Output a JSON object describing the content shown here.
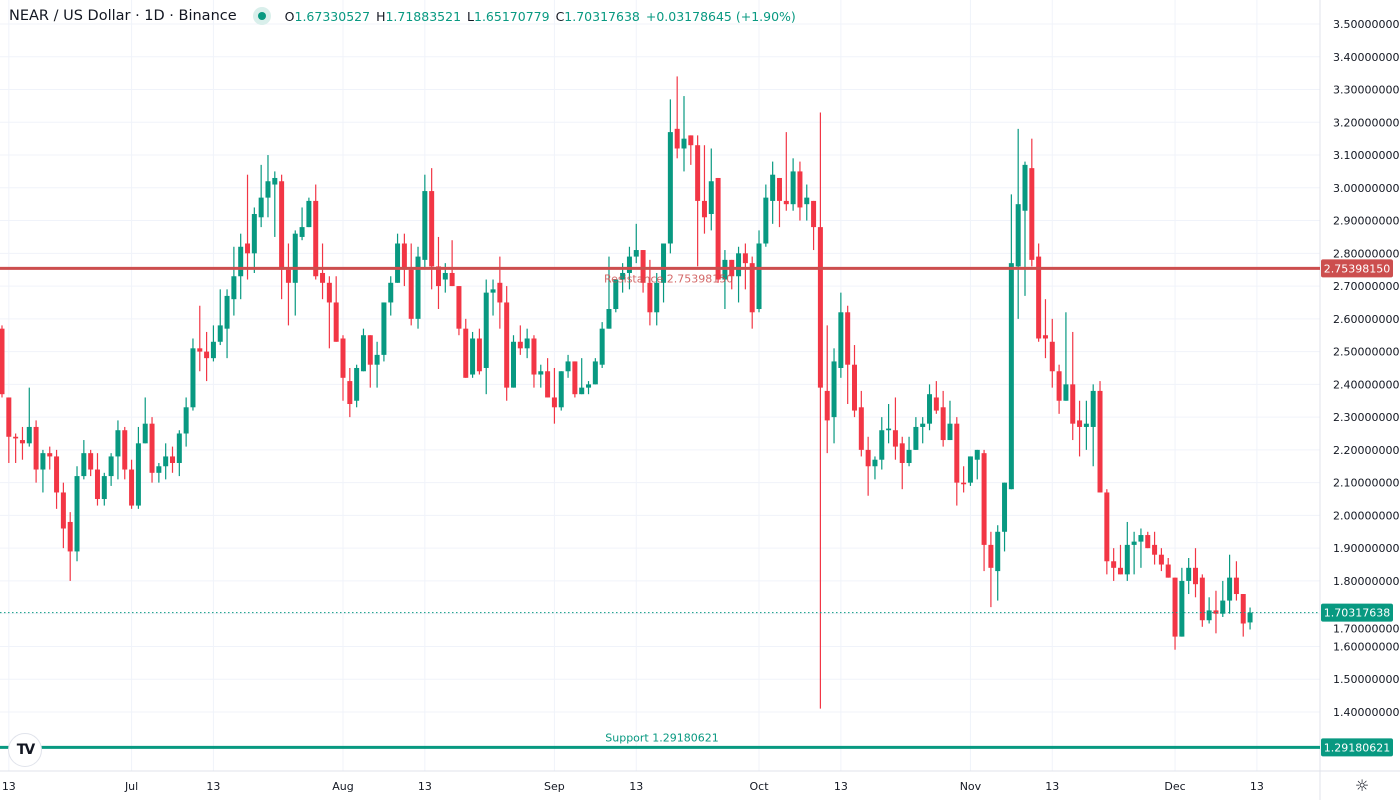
{
  "header": {
    "title": "NEAR / US Dollar · 1D · Binance",
    "o_label": "O",
    "o_value": "1.67330527",
    "h_label": "H",
    "h_value": "1.71883521",
    "l_label": "L",
    "l_value": "1.65170779",
    "c_label": "C",
    "c_value": "1.70317638",
    "change": "+0.03178645 (+1.90%)"
  },
  "colors": {
    "up": "#089981",
    "down": "#f23645",
    "resistance": "#cc4e4e",
    "support": "#089981",
    "grid": "#f0f3fa"
  },
  "icons": {
    "settings": "gear-icon",
    "logo": "tradingview-logo"
  },
  "logo_text": "TV",
  "chart_data": {
    "type": "candlestick",
    "title": "NEAR / US Dollar · 1D · Binance",
    "ylim": [
      1.4,
      3.5
    ],
    "yticks": [
      "3.50000000",
      "3.40000000",
      "3.30000000",
      "3.20000000",
      "3.10000000",
      "3.00000000",
      "2.90000000",
      "2.80000000",
      "2.70000000",
      "2.60000000",
      "2.50000000",
      "2.40000000",
      "2.30000000",
      "2.20000000",
      "2.10000000",
      "2.00000000",
      "1.90000000",
      "1.80000000",
      "1.70000000",
      "1.60000000",
      "1.50000000",
      "1.40000000"
    ],
    "xticks": [
      {
        "label": "13",
        "index": 1
      },
      {
        "label": "Jul",
        "index": 19
      },
      {
        "label": "13",
        "index": 31
      },
      {
        "label": "Aug",
        "index": 50
      },
      {
        "label": "13",
        "index": 62
      },
      {
        "label": "Sep",
        "index": 81
      },
      {
        "label": "13",
        "index": 93
      },
      {
        "label": "Oct",
        "index": 111
      },
      {
        "label": "13",
        "index": 123
      },
      {
        "label": "Nov",
        "index": 142
      },
      {
        "label": "13",
        "index": 154
      },
      {
        "label": "Dec",
        "index": 172
      },
      {
        "label": "13",
        "index": 184
      }
    ],
    "resistance": {
      "label": "Resistance 2.75398150",
      "value": 2.7539815,
      "axis_label": "2.75398150"
    },
    "support": {
      "label": "Support 1.29180621",
      "value": 1.29180621,
      "axis_label": "1.29180621"
    },
    "last_price": {
      "value": 1.70317638,
      "axis_label": "1.70317638"
    },
    "ohlc_fields": [
      "open",
      "high",
      "low",
      "close"
    ],
    "candles": [
      [
        2.57,
        2.58,
        2.36,
        2.37
      ],
      [
        2.36,
        2.36,
        2.16,
        2.24
      ],
      [
        2.24,
        2.25,
        2.16,
        2.235
      ],
      [
        2.23,
        2.27,
        2.17,
        2.22
      ],
      [
        2.22,
        2.39,
        2.21,
        2.27
      ],
      [
        2.27,
        2.29,
        2.1,
        2.14
      ],
      [
        2.14,
        2.2,
        2.07,
        2.19
      ],
      [
        2.19,
        2.21,
        2.14,
        2.18
      ],
      [
        2.18,
        2.2,
        2.02,
        2.07
      ],
      [
        2.07,
        2.1,
        1.9,
        1.96
      ],
      [
        1.98,
        2.01,
        1.8,
        1.89
      ],
      [
        1.89,
        2.15,
        1.86,
        2.12
      ],
      [
        2.12,
        2.23,
        2.11,
        2.19
      ],
      [
        2.19,
        2.2,
        2.12,
        2.14
      ],
      [
        2.14,
        2.19,
        2.03,
        2.05
      ],
      [
        2.05,
        2.13,
        2.03,
        2.12
      ],
      [
        2.12,
        2.19,
        2.09,
        2.18
      ],
      [
        2.18,
        2.29,
        2.11,
        2.26
      ],
      [
        2.26,
        2.27,
        2.11,
        2.14
      ],
      [
        2.14,
        2.17,
        2.02,
        2.03
      ],
      [
        2.03,
        2.27,
        2.02,
        2.22
      ],
      [
        2.22,
        2.36,
        2.22,
        2.28
      ],
      [
        2.28,
        2.3,
        2.1,
        2.13
      ],
      [
        2.13,
        2.16,
        2.1,
        2.15
      ],
      [
        2.15,
        2.22,
        2.11,
        2.18
      ],
      [
        2.18,
        2.21,
        2.13,
        2.16
      ],
      [
        2.16,
        2.26,
        2.12,
        2.25
      ],
      [
        2.25,
        2.36,
        2.21,
        2.33
      ],
      [
        2.33,
        2.54,
        2.32,
        2.51
      ],
      [
        2.51,
        2.64,
        2.44,
        2.5
      ],
      [
        2.5,
        2.56,
        2.41,
        2.48
      ],
      [
        2.48,
        2.58,
        2.47,
        2.53
      ],
      [
        2.53,
        2.69,
        2.52,
        2.58
      ],
      [
        2.57,
        2.69,
        2.48,
        2.67
      ],
      [
        2.66,
        2.82,
        2.61,
        2.73
      ],
      [
        2.73,
        2.86,
        2.66,
        2.82
      ],
      [
        2.83,
        3.04,
        2.72,
        2.8
      ],
      [
        2.8,
        2.94,
        2.74,
        2.92
      ],
      [
        2.91,
        3.07,
        2.88,
        2.97
      ],
      [
        2.97,
        3.1,
        2.91,
        3.02
      ],
      [
        3.01,
        3.05,
        2.85,
        3.03
      ],
      [
        3.02,
        3.04,
        2.66,
        2.75
      ],
      [
        2.75,
        2.83,
        2.58,
        2.71
      ],
      [
        2.71,
        2.87,
        2.61,
        2.86
      ],
      [
        2.85,
        2.94,
        2.84,
        2.88
      ],
      [
        2.88,
        2.97,
        2.88,
        2.96
      ],
      [
        2.96,
        3.01,
        2.72,
        2.73
      ],
      [
        2.74,
        2.83,
        2.66,
        2.71
      ],
      [
        2.71,
        2.73,
        2.51,
        2.65
      ],
      [
        2.65,
        2.73,
        2.53,
        2.53
      ],
      [
        2.54,
        2.55,
        2.35,
        2.42
      ],
      [
        2.41,
        2.45,
        2.3,
        2.34
      ],
      [
        2.35,
        2.46,
        2.33,
        2.45
      ],
      [
        2.44,
        2.57,
        2.44,
        2.55
      ],
      [
        2.55,
        2.55,
        2.39,
        2.46
      ],
      [
        2.46,
        2.53,
        2.39,
        2.49
      ],
      [
        2.49,
        2.65,
        2.47,
        2.65
      ],
      [
        2.65,
        2.73,
        2.61,
        2.71
      ],
      [
        2.71,
        2.86,
        2.71,
        2.83
      ],
      [
        2.83,
        2.86,
        2.7,
        2.75
      ],
      [
        2.75,
        2.83,
        2.58,
        2.6
      ],
      [
        2.6,
        2.82,
        2.57,
        2.79
      ],
      [
        2.78,
        3.04,
        2.75,
        2.99
      ],
      [
        2.99,
        3.06,
        2.69,
        2.76
      ],
      [
        2.76,
        2.85,
        2.63,
        2.7
      ],
      [
        2.72,
        2.77,
        2.68,
        2.74
      ],
      [
        2.74,
        2.84,
        2.7,
        2.7
      ],
      [
        2.7,
        2.7,
        2.55,
        2.57
      ],
      [
        2.57,
        2.6,
        2.42,
        2.42
      ],
      [
        2.43,
        2.56,
        2.42,
        2.54
      ],
      [
        2.54,
        2.57,
        2.43,
        2.44
      ],
      [
        2.45,
        2.72,
        2.37,
        2.68
      ],
      [
        2.68,
        2.72,
        2.61,
        2.69
      ],
      [
        2.71,
        2.79,
        2.57,
        2.65
      ],
      [
        2.65,
        2.7,
        2.35,
        2.39
      ],
      [
        2.39,
        2.55,
        2.39,
        2.53
      ],
      [
        2.53,
        2.58,
        2.49,
        2.51
      ],
      [
        2.51,
        2.57,
        2.48,
        2.54
      ],
      [
        2.54,
        2.55,
        2.39,
        2.43
      ],
      [
        2.43,
        2.46,
        2.39,
        2.44
      ],
      [
        2.44,
        2.48,
        2.36,
        2.36
      ],
      [
        2.36,
        2.45,
        2.28,
        2.33
      ],
      [
        2.33,
        2.44,
        2.32,
        2.44
      ],
      [
        2.44,
        2.49,
        2.42,
        2.47
      ],
      [
        2.47,
        2.47,
        2.36,
        2.37
      ],
      [
        2.37,
        2.48,
        2.37,
        2.39
      ],
      [
        2.39,
        2.41,
        2.37,
        2.4
      ],
      [
        2.4,
        2.48,
        2.4,
        2.47
      ],
      [
        2.46,
        2.59,
        2.45,
        2.57
      ],
      [
        2.57,
        2.79,
        2.57,
        2.63
      ],
      [
        2.63,
        2.72,
        2.62,
        2.72
      ],
      [
        2.72,
        2.77,
        2.68,
        2.74
      ],
      [
        2.74,
        2.82,
        2.69,
        2.79
      ],
      [
        2.79,
        2.89,
        2.77,
        2.81
      ],
      [
        2.81,
        2.81,
        2.68,
        2.71
      ],
      [
        2.71,
        2.78,
        2.58,
        2.62
      ],
      [
        2.62,
        2.74,
        2.58,
        2.71
      ],
      [
        2.71,
        2.83,
        2.65,
        2.83
      ],
      [
        2.83,
        3.27,
        2.8,
        3.17
      ],
      [
        3.18,
        3.34,
        3.09,
        3.12
      ],
      [
        3.12,
        3.28,
        3.05,
        3.15
      ],
      [
        3.16,
        3.16,
        3.07,
        3.13
      ],
      [
        3.13,
        3.16,
        2.76,
        2.96
      ],
      [
        2.96,
        3.13,
        2.86,
        2.91
      ],
      [
        2.92,
        3.12,
        2.87,
        3.02
      ],
      [
        3.03,
        3.03,
        2.71,
        2.72
      ],
      [
        2.72,
        2.81,
        2.63,
        2.78
      ],
      [
        2.78,
        2.78,
        2.69,
        2.73
      ],
      [
        2.73,
        2.82,
        2.65,
        2.8
      ],
      [
        2.8,
        2.83,
        2.69,
        2.77
      ],
      [
        2.77,
        2.79,
        2.57,
        2.62
      ],
      [
        2.63,
        2.87,
        2.62,
        2.83
      ],
      [
        2.83,
        3.01,
        2.82,
        2.97
      ],
      [
        2.96,
        3.08,
        2.89,
        3.04
      ],
      [
        3.03,
        3.03,
        2.88,
        2.96
      ],
      [
        2.96,
        3.17,
        2.93,
        2.95
      ],
      [
        2.95,
        3.09,
        2.93,
        3.05
      ],
      [
        3.05,
        3.08,
        2.9,
        2.94
      ],
      [
        2.95,
        3.01,
        2.9,
        2.97
      ],
      [
        2.96,
        2.96,
        2.81,
        2.88
      ],
      [
        2.88,
        3.23,
        1.41,
        2.39
      ],
      [
        2.38,
        2.58,
        2.19,
        2.29
      ],
      [
        2.3,
        2.51,
        2.22,
        2.47
      ],
      [
        2.45,
        2.68,
        2.42,
        2.62
      ],
      [
        2.62,
        2.64,
        2.34,
        2.46
      ],
      [
        2.46,
        2.52,
        2.3,
        2.32
      ],
      [
        2.33,
        2.38,
        2.18,
        2.2
      ],
      [
        2.2,
        2.24,
        2.06,
        2.15
      ],
      [
        2.15,
        2.18,
        2.11,
        2.17
      ],
      [
        2.17,
        2.3,
        2.14,
        2.26
      ],
      [
        2.26,
        2.34,
        2.22,
        2.265
      ],
      [
        2.26,
        2.36,
        2.17,
        2.21
      ],
      [
        2.22,
        2.24,
        2.08,
        2.16
      ],
      [
        2.16,
        2.24,
        2.15,
        2.2
      ],
      [
        2.2,
        2.3,
        2.2,
        2.27
      ],
      [
        2.27,
        2.3,
        2.22,
        2.28
      ],
      [
        2.28,
        2.4,
        2.26,
        2.37
      ],
      [
        2.36,
        2.41,
        2.31,
        2.32
      ],
      [
        2.33,
        2.38,
        2.21,
        2.23
      ],
      [
        2.23,
        2.35,
        2.23,
        2.28
      ],
      [
        2.28,
        2.3,
        2.03,
        2.1
      ],
      [
        2.1,
        2.15,
        2.07,
        2.095
      ],
      [
        2.1,
        2.18,
        2.09,
        2.18
      ],
      [
        2.17,
        2.2,
        2.11,
        2.2
      ],
      [
        2.19,
        2.2,
        1.83,
        1.91
      ],
      [
        1.91,
        1.95,
        1.72,
        1.84
      ],
      [
        1.83,
        1.97,
        1.74,
        1.95
      ],
      [
        1.95,
        2.1,
        1.89,
        2.1
      ],
      [
        2.08,
        2.98,
        2.08,
        2.77
      ],
      [
        2.76,
        3.18,
        2.6,
        2.95
      ],
      [
        2.93,
        3.08,
        2.67,
        3.07
      ],
      [
        3.06,
        3.15,
        2.76,
        2.78
      ],
      [
        2.79,
        2.83,
        2.53,
        2.54
      ],
      [
        2.55,
        2.66,
        2.48,
        2.54
      ],
      [
        2.53,
        2.6,
        2.39,
        2.44
      ],
      [
        2.44,
        2.46,
        2.31,
        2.35
      ],
      [
        2.35,
        2.62,
        2.35,
        2.4
      ],
      [
        2.4,
        2.56,
        2.23,
        2.28
      ],
      [
        2.29,
        2.35,
        2.18,
        2.27
      ],
      [
        2.27,
        2.35,
        2.2,
        2.28
      ],
      [
        2.27,
        2.4,
        2.15,
        2.38
      ],
      [
        2.38,
        2.41,
        2.07,
        2.07
      ],
      [
        2.07,
        2.08,
        1.82,
        1.86
      ],
      [
        1.86,
        1.9,
        1.8,
        1.84
      ],
      [
        1.84,
        1.91,
        1.82,
        1.82
      ],
      [
        1.82,
        1.98,
        1.8,
        1.91
      ],
      [
        1.91,
        1.95,
        1.82,
        1.92
      ],
      [
        1.92,
        1.96,
        1.84,
        1.94
      ],
      [
        1.94,
        1.95,
        1.9,
        1.9
      ],
      [
        1.91,
        1.95,
        1.85,
        1.88
      ],
      [
        1.88,
        1.9,
        1.83,
        1.85
      ],
      [
        1.85,
        1.87,
        1.81,
        1.81
      ],
      [
        1.81,
        1.81,
        1.59,
        1.63
      ],
      [
        1.63,
        1.84,
        1.63,
        1.8
      ],
      [
        1.8,
        1.87,
        1.76,
        1.84
      ],
      [
        1.84,
        1.9,
        1.75,
        1.79
      ],
      [
        1.81,
        1.82,
        1.66,
        1.68
      ],
      [
        1.68,
        1.75,
        1.67,
        1.71
      ],
      [
        1.71,
        1.77,
        1.64,
        1.7
      ],
      [
        1.7,
        1.8,
        1.69,
        1.74
      ],
      [
        1.74,
        1.88,
        1.7,
        1.81
      ],
      [
        1.81,
        1.86,
        1.74,
        1.76
      ],
      [
        1.76,
        1.76,
        1.63,
        1.67
      ],
      [
        1.6733,
        1.7188,
        1.6517,
        1.7032
      ]
    ]
  }
}
